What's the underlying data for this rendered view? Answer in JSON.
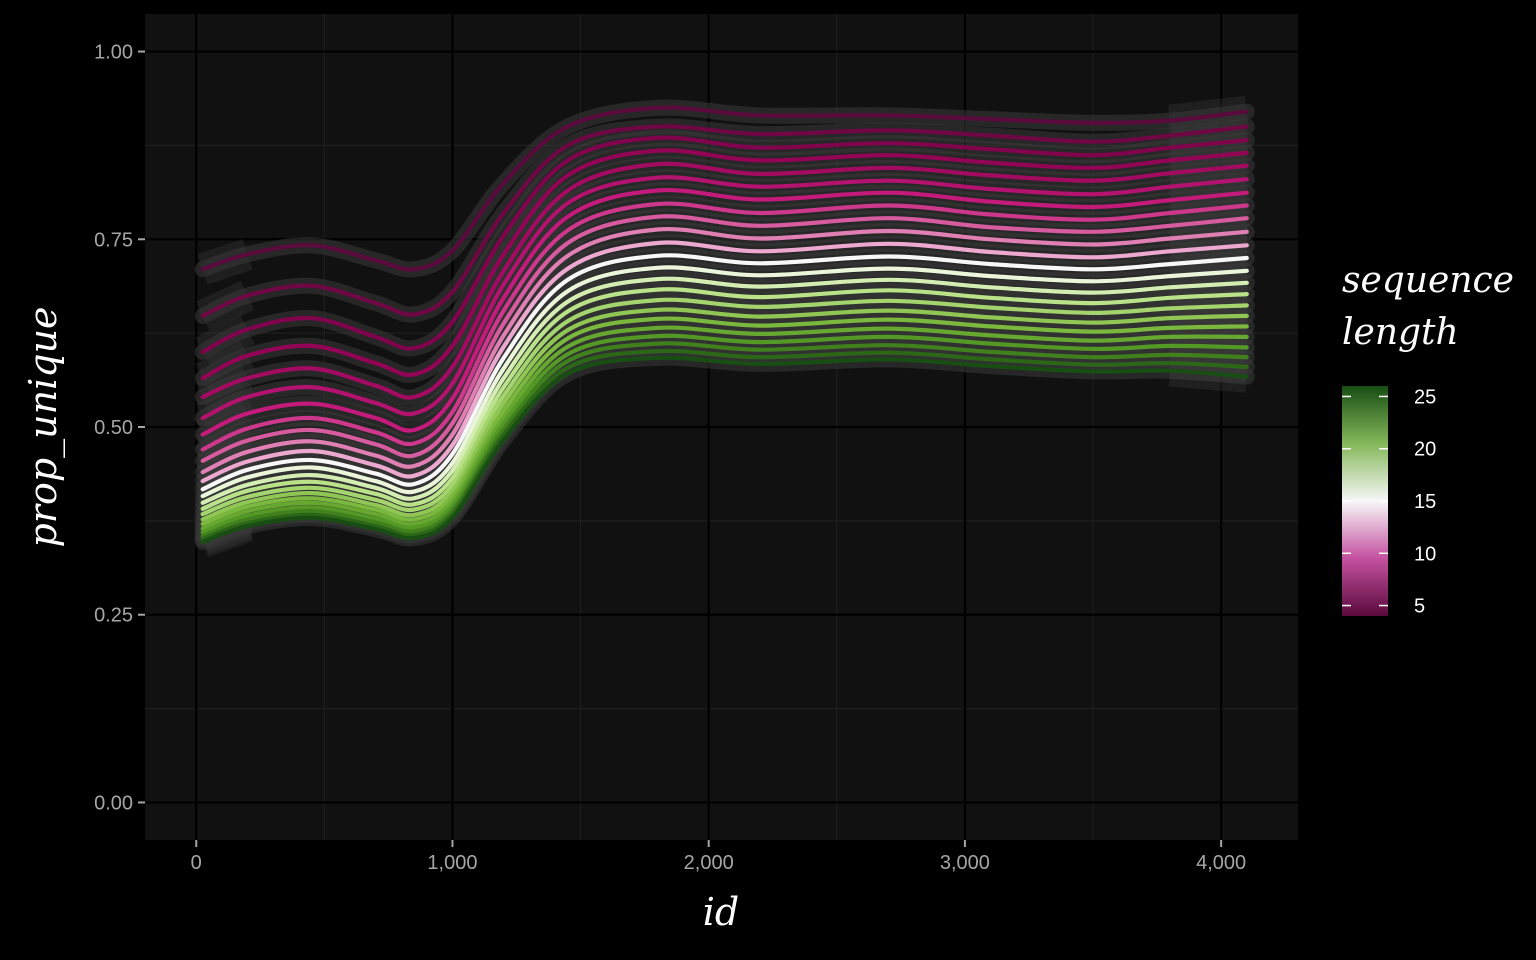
{
  "chart_data": {
    "type": "line",
    "xlabel": "id",
    "ylabel": "prop_unique",
    "xlim": [
      -200,
      4300
    ],
    "ylim": [
      -0.05,
      1.05
    ],
    "x_ticks": [
      0,
      1000,
      2000,
      3000,
      4000
    ],
    "x_tick_labels": [
      "0",
      "1,000",
      "2,000",
      "3,000",
      "4,000"
    ],
    "y_ticks": [
      0,
      0.25,
      0.5,
      0.75,
      1.0
    ],
    "y_tick_labels": [
      "0.00",
      "0.25",
      "0.50",
      "0.75",
      "1.00"
    ],
    "grid": true,
    "smoothed_with_confidence_band": true,
    "colors": {
      "background": "#000000",
      "panel": "#111111",
      "grid_major": "#000000",
      "grid_minor": "#1e1e1e",
      "band": "#3a3a3a",
      "palette_low": "#5a0a3c",
      "palette_mid": "#f7f7f7",
      "palette_high": "#184d13"
    },
    "legend": {
      "title_lines": [
        "sequence",
        "length"
      ],
      "position": "right",
      "type": "colorbar",
      "range": [
        4,
        26
      ],
      "breaks": [
        5,
        10,
        15,
        20,
        25
      ],
      "break_labels": [
        "5",
        "10",
        "15",
        "20",
        "25"
      ]
    },
    "x": [
      25,
      200,
      450,
      700,
      850,
      1000,
      1200,
      1450,
      1800,
      2200,
      2700,
      3100,
      3500,
      3800,
      4100
    ],
    "series": [
      {
        "color_value": 4,
        "values": [
          0.71,
          0.73,
          0.742,
          0.722,
          0.71,
          0.735,
          0.825,
          0.9,
          0.925,
          0.915,
          0.915,
          0.91,
          0.905,
          0.908,
          0.92
        ]
      },
      {
        "color_value": 5,
        "values": [
          0.648,
          0.675,
          0.688,
          0.665,
          0.65,
          0.68,
          0.785,
          0.875,
          0.9,
          0.89,
          0.895,
          0.888,
          0.88,
          0.888,
          0.9
        ]
      },
      {
        "color_value": 6,
        "values": [
          0.6,
          0.63,
          0.645,
          0.62,
          0.605,
          0.64,
          0.755,
          0.855,
          0.885,
          0.872,
          0.878,
          0.87,
          0.862,
          0.872,
          0.882
        ]
      },
      {
        "color_value": 7,
        "values": [
          0.565,
          0.595,
          0.608,
          0.585,
          0.57,
          0.608,
          0.73,
          0.835,
          0.868,
          0.855,
          0.862,
          0.852,
          0.845,
          0.855,
          0.865
        ]
      },
      {
        "color_value": 8,
        "values": [
          0.54,
          0.565,
          0.578,
          0.555,
          0.54,
          0.58,
          0.708,
          0.815,
          0.85,
          0.837,
          0.845,
          0.835,
          0.828,
          0.838,
          0.848
        ]
      },
      {
        "color_value": 9,
        "values": [
          0.512,
          0.54,
          0.553,
          0.532,
          0.518,
          0.558,
          0.69,
          0.798,
          0.832,
          0.82,
          0.828,
          0.817,
          0.81,
          0.82,
          0.83
        ]
      },
      {
        "color_value": 10,
        "values": [
          0.49,
          0.518,
          0.531,
          0.512,
          0.496,
          0.538,
          0.672,
          0.78,
          0.815,
          0.803,
          0.812,
          0.8,
          0.793,
          0.802,
          0.812
        ]
      },
      {
        "color_value": 11,
        "values": [
          0.47,
          0.498,
          0.512,
          0.493,
          0.478,
          0.52,
          0.655,
          0.762,
          0.797,
          0.785,
          0.795,
          0.783,
          0.776,
          0.785,
          0.795
        ]
      },
      {
        "color_value": 12,
        "values": [
          0.455,
          0.482,
          0.496,
          0.477,
          0.462,
          0.505,
          0.638,
          0.745,
          0.78,
          0.768,
          0.778,
          0.766,
          0.76,
          0.768,
          0.778
        ]
      },
      {
        "color_value": 13,
        "values": [
          0.44,
          0.467,
          0.481,
          0.462,
          0.448,
          0.49,
          0.622,
          0.728,
          0.763,
          0.751,
          0.761,
          0.75,
          0.743,
          0.751,
          0.76
        ]
      },
      {
        "color_value": 14,
        "values": [
          0.428,
          0.454,
          0.468,
          0.449,
          0.435,
          0.476,
          0.607,
          0.711,
          0.745,
          0.734,
          0.744,
          0.733,
          0.726,
          0.734,
          0.742
        ]
      },
      {
        "color_value": 15,
        "values": [
          0.417,
          0.443,
          0.456,
          0.438,
          0.424,
          0.464,
          0.592,
          0.696,
          0.728,
          0.718,
          0.727,
          0.717,
          0.71,
          0.717,
          0.725
        ]
      },
      {
        "color_value": 16,
        "values": [
          0.408,
          0.433,
          0.446,
          0.428,
          0.414,
          0.452,
          0.578,
          0.681,
          0.712,
          0.702,
          0.711,
          0.701,
          0.694,
          0.701,
          0.708
        ]
      },
      {
        "color_value": 17,
        "values": [
          0.399,
          0.423,
          0.436,
          0.419,
          0.405,
          0.442,
          0.565,
          0.667,
          0.697,
          0.687,
          0.696,
          0.686,
          0.679,
          0.686,
          0.692
        ]
      },
      {
        "color_value": 18,
        "values": [
          0.391,
          0.415,
          0.427,
          0.411,
          0.397,
          0.432,
          0.553,
          0.654,
          0.683,
          0.673,
          0.682,
          0.672,
          0.665,
          0.672,
          0.677
        ]
      },
      {
        "color_value": 19,
        "values": [
          0.384,
          0.407,
          0.419,
          0.403,
          0.39,
          0.423,
          0.542,
          0.641,
          0.669,
          0.66,
          0.668,
          0.659,
          0.652,
          0.658,
          0.662
        ]
      },
      {
        "color_value": 20,
        "values": [
          0.377,
          0.4,
          0.412,
          0.396,
          0.383,
          0.415,
          0.532,
          0.629,
          0.656,
          0.647,
          0.655,
          0.646,
          0.639,
          0.645,
          0.648
        ]
      },
      {
        "color_value": 21,
        "values": [
          0.371,
          0.394,
          0.405,
          0.39,
          0.377,
          0.408,
          0.522,
          0.618,
          0.644,
          0.635,
          0.643,
          0.634,
          0.627,
          0.632,
          0.634
        ]
      },
      {
        "color_value": 22,
        "values": [
          0.365,
          0.388,
          0.399,
          0.384,
          0.371,
          0.401,
          0.513,
          0.607,
          0.632,
          0.624,
          0.631,
          0.622,
          0.615,
          0.62,
          0.62
        ]
      },
      {
        "color_value": 23,
        "values": [
          0.36,
          0.382,
          0.393,
          0.378,
          0.366,
          0.395,
          0.505,
          0.597,
          0.621,
          0.613,
          0.62,
          0.611,
          0.604,
          0.608,
          0.606
        ]
      },
      {
        "color_value": 24,
        "values": [
          0.355,
          0.377,
          0.388,
          0.373,
          0.361,
          0.389,
          0.497,
          0.588,
          0.611,
          0.603,
          0.609,
          0.6,
          0.593,
          0.596,
          0.593
        ]
      },
      {
        "color_value": 25,
        "values": [
          0.351,
          0.372,
          0.383,
          0.368,
          0.356,
          0.384,
          0.49,
          0.579,
          0.601,
          0.593,
          0.599,
          0.59,
          0.583,
          0.585,
          0.58
        ]
      },
      {
        "color_value": 26,
        "values": [
          0.347,
          0.368,
          0.379,
          0.364,
          0.352,
          0.379,
          0.483,
          0.571,
          0.592,
          0.584,
          0.59,
          0.581,
          0.574,
          0.575,
          0.567
        ]
      }
    ]
  }
}
